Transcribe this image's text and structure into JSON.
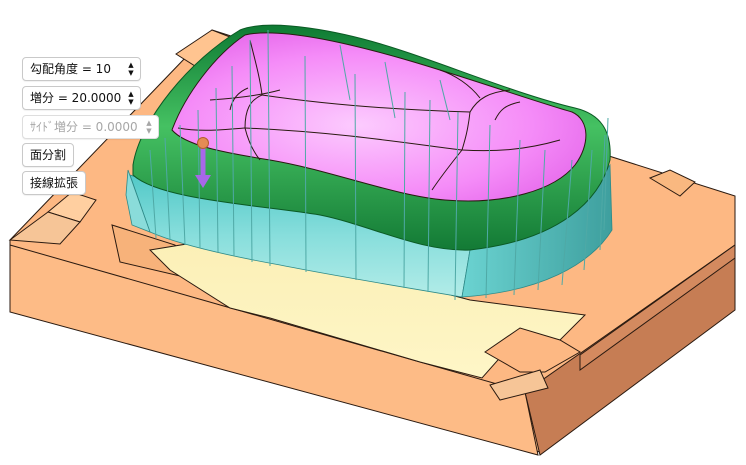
{
  "app": {
    "colors": {
      "base_top": "#FDB883",
      "base_side": "#C67D54",
      "cavity_floor": "#FEF3B9",
      "teal_side": "#7DDAD8",
      "green_rim": "#1E9A45",
      "magenta_top": "#F274F6",
      "draft_lines": "#4FA9A6",
      "pick_handle": "#E58B55",
      "pick_arrow": "#A867E8"
    }
  },
  "controls": {
    "draft_angle": {
      "label": "勾配角度 = 10",
      "icon": "spin-arrows-icon"
    },
    "offset": {
      "label": "増分 = 20.0000",
      "icon": "spin-arrows-icon"
    },
    "side_offset": {
      "label": "ｻｲﾄﾞ増分 =  0.0000",
      "icon": "spin-arrows-icon",
      "enabled": false
    },
    "face_split": {
      "label": "面分割"
    },
    "tangent_extend": {
      "label": "接線拡張"
    }
  }
}
